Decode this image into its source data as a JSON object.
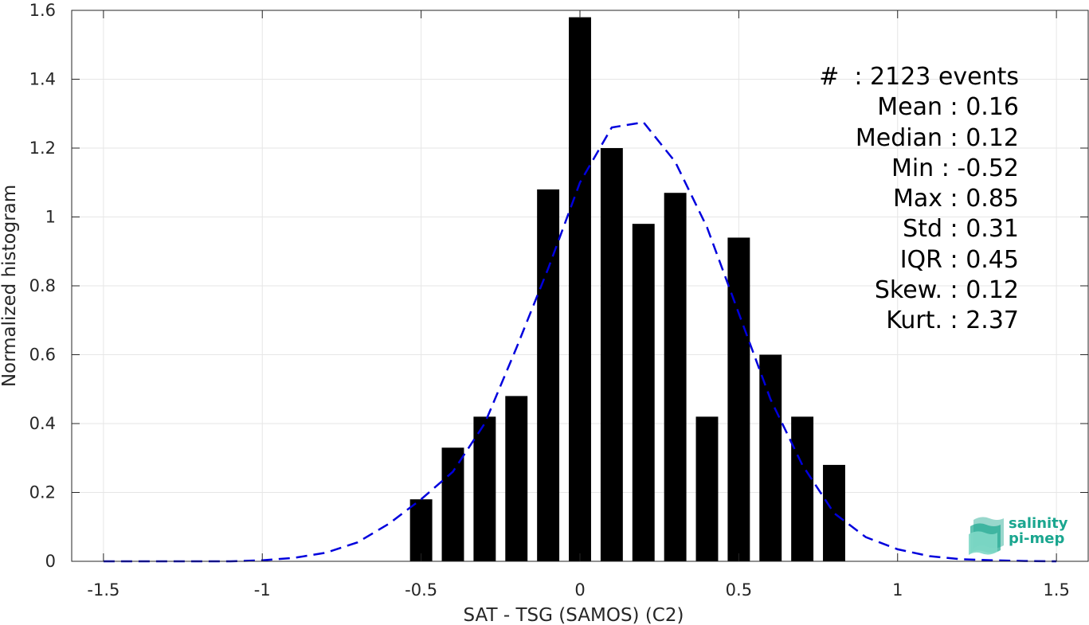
{
  "chart_data": {
    "type": "bar",
    "xlabel": "SAT - TSG (SAMOS) (C2)",
    "ylabel": "Normalized histogram",
    "xlim": [
      -1.6,
      1.6
    ],
    "ylim": [
      0,
      1.6
    ],
    "xticks": [
      -1.5,
      -1,
      -0.5,
      0,
      0.5,
      1,
      1.5
    ],
    "xtick_labels": [
      "-1.5",
      "-1",
      "-0.5",
      "0",
      "0.5",
      "1",
      "1.5"
    ],
    "yticks": [
      0,
      0.2,
      0.4,
      0.6,
      0.8,
      1,
      1.2,
      1.4,
      1.6
    ],
    "ytick_labels": [
      "0",
      "0.2",
      "0.4",
      "0.6",
      "0.8",
      "1",
      "1.2",
      "1.4",
      "1.6"
    ],
    "grid": true,
    "bar_width": 0.07,
    "bars": {
      "x": [
        -0.5,
        -0.4,
        -0.3,
        -0.2,
        -0.1,
        0.0,
        0.1,
        0.2,
        0.3,
        0.4,
        0.5,
        0.6,
        0.7,
        0.8
      ],
      "values": [
        0.18,
        0.33,
        0.42,
        0.48,
        1.08,
        1.58,
        1.2,
        0.98,
        1.07,
        0.42,
        0.94,
        0.6,
        0.42,
        0.28
      ],
      "color": "#000000"
    },
    "fit_curve": {
      "style": "dashed",
      "color": "#0000dd",
      "x": [
        -1.5,
        -1.4,
        -1.3,
        -1.2,
        -1.1,
        -1.0,
        -0.9,
        -0.8,
        -0.7,
        -0.6,
        -0.5,
        -0.4,
        -0.3,
        -0.2,
        -0.1,
        0.0,
        0.1,
        0.2,
        0.3,
        0.4,
        0.5,
        0.6,
        0.7,
        0.8,
        0.9,
        1.0,
        1.1,
        1.2,
        1.3,
        1.4,
        1.5
      ],
      "y": [
        0.0,
        0.0,
        0.0,
        0.0,
        0.0,
        0.003,
        0.01,
        0.025,
        0.055,
        0.11,
        0.18,
        0.26,
        0.4,
        0.62,
        0.85,
        1.1,
        1.26,
        1.275,
        1.16,
        0.97,
        0.72,
        0.47,
        0.28,
        0.14,
        0.07,
        0.035,
        0.015,
        0.006,
        0.003,
        0.001,
        0.0
      ]
    }
  },
  "stats": [
    "#  : 2123 events",
    "Mean : 0.16",
    "Median : 0.12",
    "Min : -0.52",
    "Max : 0.85",
    "Std : 0.31",
    "IQR : 0.45",
    "Skew. : 0.12",
    "Kurt. : 2.37"
  ],
  "logo": {
    "line1": "salinity",
    "line2": "pi-mep",
    "color": "#1aa68f"
  }
}
